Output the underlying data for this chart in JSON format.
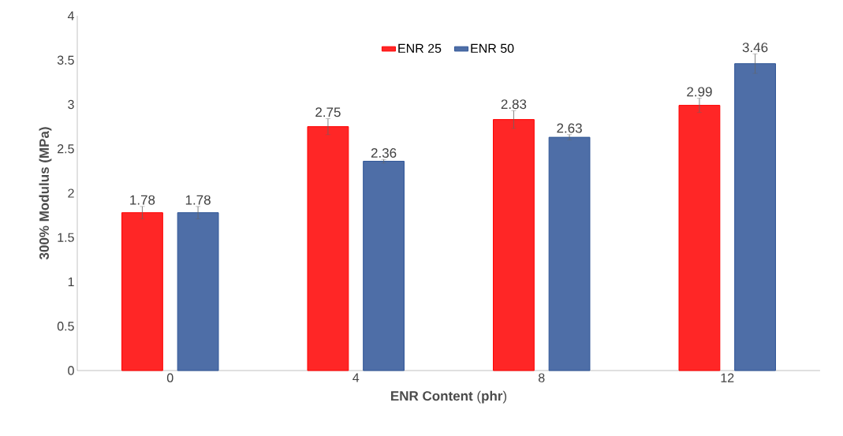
{
  "chart_data": {
    "type": "bar",
    "xlabel": "**ENR Content** (**phr**)",
    "ylabel": "300% Modulus (MPa)",
    "categories": [
      "0",
      "4",
      "8",
      "12"
    ],
    "series": [
      {
        "name": "ENR 25",
        "color": "#ff0000",
        "values": [
          1.78,
          2.75,
          2.83,
          2.99
        ],
        "errors": [
          0.07,
          0.09,
          0.1,
          0.08
        ]
      },
      {
        "name": "ENR 50",
        "color": "#2f5597",
        "values": [
          1.78,
          2.36,
          2.63,
          3.46
        ],
        "errors": [
          0.07,
          0.02,
          0.03,
          0.11
        ]
      }
    ],
    "ylim": [
      0,
      4
    ],
    "yticks": [
      0,
      0.5,
      1,
      1.5,
      2,
      2.5,
      3,
      3.5,
      4
    ],
    "data_labels": true,
    "legend": "top",
    "grid": false
  }
}
